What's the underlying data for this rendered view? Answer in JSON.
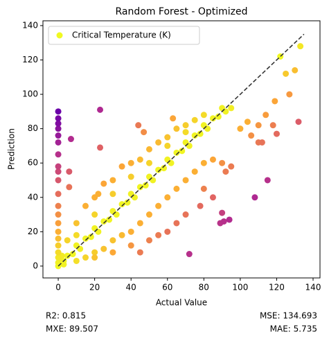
{
  "chart_data": {
    "type": "scatter",
    "title": "Random Forest - Optimized",
    "x_label": "Actual Value",
    "y_label": "Prediction",
    "xlim": [
      -8.4,
      143.8
    ],
    "ylim": [
      -6.9,
      142.8
    ],
    "xticks": [
      0,
      20,
      40,
      60,
      80,
      100,
      120,
      140
    ],
    "yticks": [
      0,
      20,
      40,
      60,
      80,
      100,
      120,
      140
    ],
    "grid": false,
    "legend": "upper left",
    "colormap": [
      "#f0f921",
      "#fca636",
      "#e16462",
      "#b12a90",
      "#6a00a8"
    ],
    "reference_line": {
      "x": [
        0,
        135
      ],
      "y": [
        0,
        135
      ],
      "color": "#333333"
    },
    "series": [
      {
        "name": "Critical Temperature (K)",
        "color": "#f0f921",
        "x": [
          0,
          0,
          0,
          0,
          0,
          0,
          0,
          0,
          0,
          0,
          0,
          0,
          0,
          0,
          0,
          0,
          0,
          0,
          0,
          0,
          0,
          1,
          2,
          3,
          3,
          5,
          8,
          10,
          12,
          15,
          18,
          20,
          22,
          25,
          28,
          30,
          32,
          35,
          38,
          40,
          42,
          45,
          48,
          50,
          52,
          55,
          58,
          60,
          62,
          65,
          68,
          70,
          72,
          75,
          78,
          80,
          82,
          85,
          88,
          90,
          92,
          95,
          5,
          10,
          15,
          20,
          22,
          25,
          30,
          35,
          40,
          45,
          50,
          55,
          60,
          65,
          70,
          75,
          80,
          10,
          20,
          30,
          40,
          50,
          60,
          70,
          10,
          15,
          20,
          25,
          30,
          35,
          40,
          45,
          50,
          55,
          60,
          65,
          70,
          75,
          80,
          85,
          90,
          92,
          95,
          80,
          78,
          85,
          70,
          65,
          60,
          55,
          50,
          20,
          30,
          40,
          45,
          23,
          7,
          6,
          6,
          44,
          47,
          63,
          72,
          89,
          91,
          94,
          90,
          115,
          108,
          100,
          104,
          106,
          110,
          112,
          110,
          114,
          118,
          120,
          119,
          122,
          125,
          130,
          133,
          132,
          127,
          23
        ],
        "y": [
          0,
          2,
          5,
          8,
          12,
          16,
          20,
          25,
          30,
          35,
          42,
          50,
          55,
          58,
          65,
          72,
          76,
          80,
          83,
          86,
          90,
          4,
          6,
          1,
          3,
          6,
          7,
          12,
          10,
          16,
          17,
          22,
          20,
          26,
          27,
          32,
          30,
          36,
          37,
          42,
          40,
          46,
          47,
          52,
          50,
          56,
          57,
          62,
          60,
          66,
          67,
          72,
          70,
          76,
          77,
          82,
          80,
          86,
          87,
          92,
          90,
          92,
          15,
          25,
          35,
          40,
          42,
          48,
          50,
          58,
          60,
          62,
          68,
          72,
          75,
          80,
          82,
          85,
          88,
          18,
          30,
          42,
          52,
          60,
          70,
          78,
          3,
          5,
          8,
          10,
          15,
          18,
          20,
          25,
          30,
          35,
          40,
          45,
          50,
          55,
          60,
          62,
          60,
          55,
          58,
          45,
          35,
          40,
          30,
          25,
          20,
          18,
          15,
          5,
          8,
          12,
          8,
          91,
          74,
          55,
          46,
          82,
          78,
          86,
          7,
          25,
          26,
          27,
          31,
          50,
          40,
          80,
          84,
          76,
          72,
          72,
          82,
          88,
          82,
          77,
          96,
          122,
          112,
          114,
          128,
          84,
          100,
          69
        ]
      }
    ],
    "annotations": {
      "r2": "R2: 0.815",
      "mse": "MSE: 134.693",
      "mxe": "MXE: 89.507",
      "mae": "MAE: 5.735"
    }
  }
}
